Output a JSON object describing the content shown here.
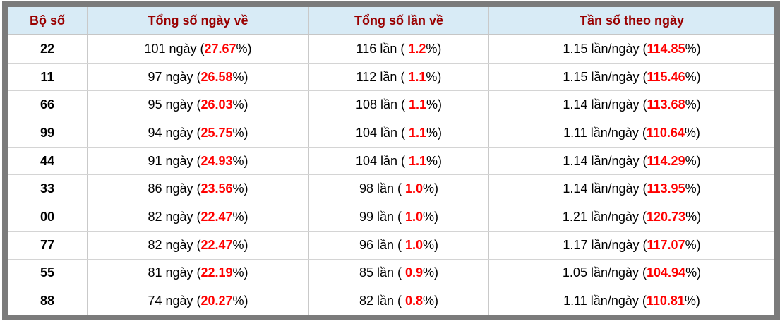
{
  "table": {
    "headers": {
      "pair": "Bộ số",
      "days": "Tổng số ngày về",
      "times": "Tổng số lần về",
      "frequency": "Tần số theo ngày"
    },
    "units": {
      "days": "ngày",
      "times": "lần",
      "frequency": "lần/ngày"
    },
    "format": {
      "open": "(",
      "open_spaced": "( ",
      "close": "%)"
    },
    "rows": [
      {
        "pair": "22",
        "days": "101",
        "days_pct": "27.67",
        "times": "116",
        "times_pct": "1.2",
        "frequency": "1.15",
        "frequency_pct": "114.85"
      },
      {
        "pair": "11",
        "days": "97",
        "days_pct": "26.58",
        "times": "112",
        "times_pct": "1.1",
        "frequency": "1.15",
        "frequency_pct": "115.46"
      },
      {
        "pair": "66",
        "days": "95",
        "days_pct": "26.03",
        "times": "108",
        "times_pct": "1.1",
        "frequency": "1.14",
        "frequency_pct": "113.68"
      },
      {
        "pair": "99",
        "days": "94",
        "days_pct": "25.75",
        "times": "104",
        "times_pct": "1.1",
        "frequency": "1.11",
        "frequency_pct": "110.64"
      },
      {
        "pair": "44",
        "days": "91",
        "days_pct": "24.93",
        "times": "104",
        "times_pct": "1.1",
        "frequency": "1.14",
        "frequency_pct": "114.29"
      },
      {
        "pair": "33",
        "days": "86",
        "days_pct": "23.56",
        "times": "98",
        "times_pct": "1.0",
        "frequency": "1.14",
        "frequency_pct": "113.95"
      },
      {
        "pair": "00",
        "days": "82",
        "days_pct": "22.47",
        "times": "99",
        "times_pct": "1.0",
        "frequency": "1.21",
        "frequency_pct": "120.73"
      },
      {
        "pair": "77",
        "days": "82",
        "days_pct": "22.47",
        "times": "96",
        "times_pct": "1.0",
        "frequency": "1.17",
        "frequency_pct": "117.07"
      },
      {
        "pair": "55",
        "days": "81",
        "days_pct": "22.19",
        "times": "85",
        "times_pct": "0.9",
        "frequency": "1.05",
        "frequency_pct": "104.94"
      },
      {
        "pair": "88",
        "days": "74",
        "days_pct": "20.27",
        "times": "82",
        "times_pct": "0.8",
        "frequency": "1.11",
        "frequency_pct": "110.81"
      }
    ]
  },
  "colors": {
    "header_bg": "#d8ebf6",
    "header_text": "#990000",
    "highlight_red": "#ff0000",
    "frame_gray": "#7b7b7b",
    "row_border": "#d4d4d4",
    "column_border": "#c9c9c9"
  }
}
